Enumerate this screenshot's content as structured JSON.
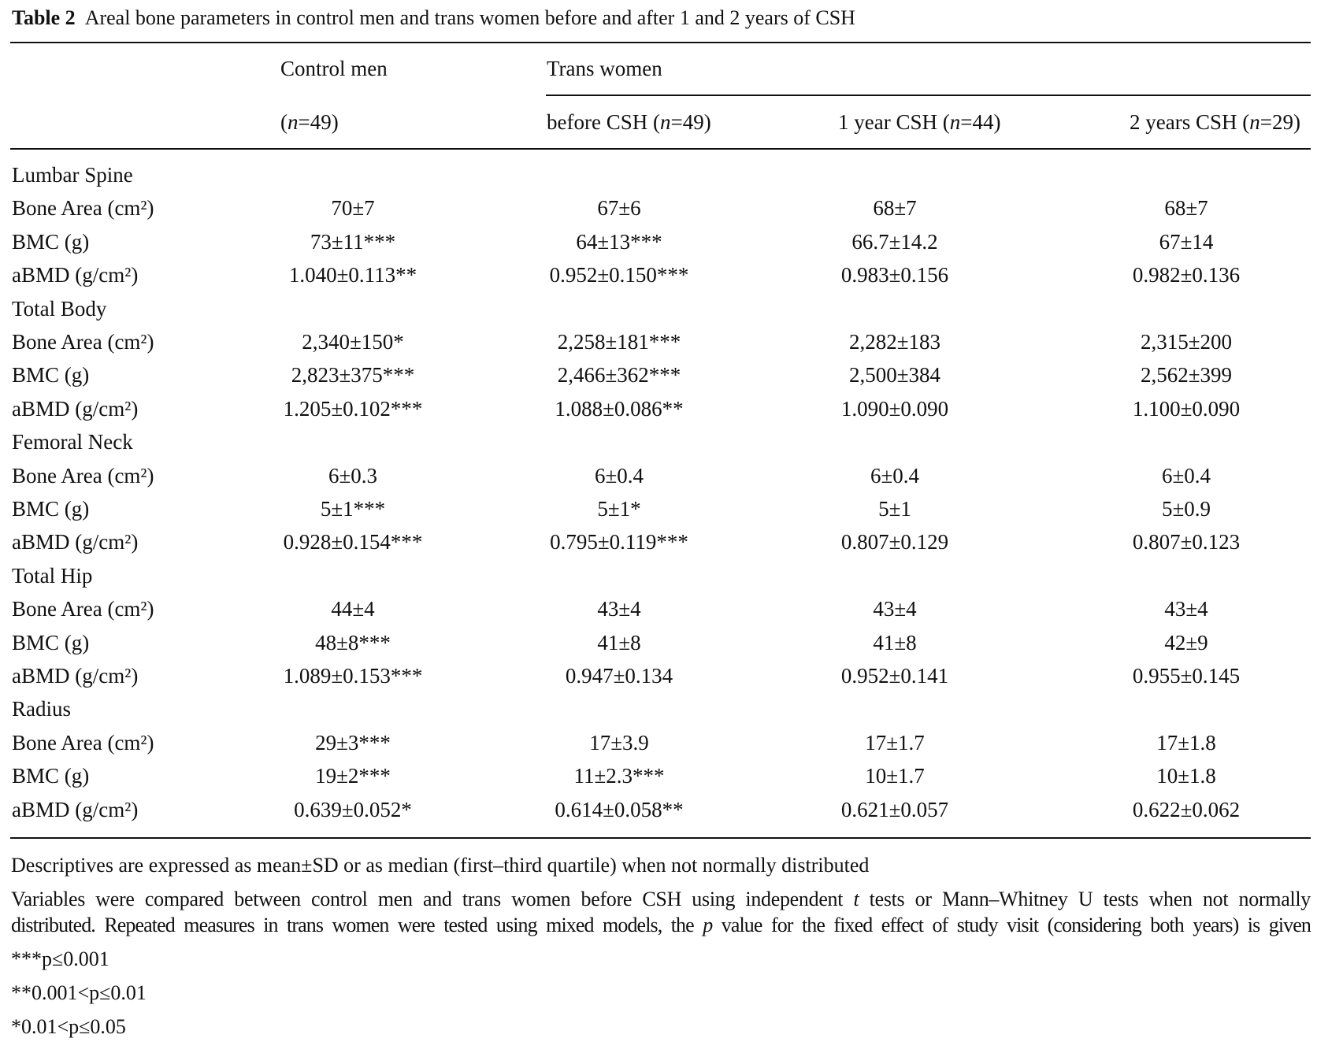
{
  "caption": {
    "label": "Table 2",
    "text": "Areal bone parameters in control men and trans women before and after 1 and 2 years of CSH"
  },
  "header": {
    "group1": "Control men",
    "group2": "Trans women",
    "columns": [
      {
        "pre": "(",
        "n": "n",
        "post": "=49)"
      },
      {
        "pre": "before CSH (",
        "n": "n",
        "post": "=49)"
      },
      {
        "pre": "1 year CSH (",
        "n": "n",
        "post": "=44)"
      },
      {
        "pre": "2 years CSH (",
        "n": "n",
        "post": "=29)"
      }
    ]
  },
  "rows": [
    {
      "label": "Lumbar Spine",
      "section": true
    },
    {
      "label": "Bone Area (cm²)",
      "values": [
        "70±7",
        "67±6",
        "68±7",
        "68±7"
      ]
    },
    {
      "label": "BMC (g)",
      "values": [
        "73±11***",
        "64±13***",
        "66.7±14.2",
        "67±14"
      ]
    },
    {
      "label": "aBMD (g/cm²)",
      "values": [
        "1.040±0.113**",
        "0.952±0.150***",
        "0.983±0.156",
        "0.982±0.136"
      ]
    },
    {
      "label": "Total Body",
      "section": true
    },
    {
      "label": "Bone Area (cm²)",
      "values": [
        "2,340±150*",
        "2,258±181***",
        "2,282±183",
        "2,315±200"
      ]
    },
    {
      "label": "BMC (g)",
      "values": [
        "2,823±375***",
        "2,466±362***",
        "2,500±384",
        "2,562±399"
      ]
    },
    {
      "label": "aBMD (g/cm²)",
      "values": [
        "1.205±0.102***",
        "1.088±0.086**",
        "1.090±0.090",
        "1.100±0.090"
      ]
    },
    {
      "label": "Femoral Neck",
      "section": true
    },
    {
      "label": "Bone Area (cm²)",
      "values": [
        "6±0.3",
        "6±0.4",
        "6±0.4",
        "6±0.4"
      ]
    },
    {
      "label": "BMC (g)",
      "values": [
        "5±1***",
        "5±1*",
        "5±1",
        "5±0.9"
      ]
    },
    {
      "label": "aBMD (g/cm²)",
      "values": [
        "0.928±0.154***",
        "0.795±0.119***",
        "0.807±0.129",
        "0.807±0.123"
      ]
    },
    {
      "label": "Total Hip",
      "section": true
    },
    {
      "label": "Bone Area (cm²)",
      "values": [
        "44±4",
        "43±4",
        "43±4",
        "43±4"
      ]
    },
    {
      "label": "BMC (g)",
      "values": [
        "48±8***",
        "41±8",
        "41±8",
        "42±9"
      ]
    },
    {
      "label": "aBMD (g/cm²)",
      "values": [
        "1.089±0.153***",
        "0.947±0.134",
        "0.952±0.141",
        "0.955±0.145"
      ]
    },
    {
      "label": "Radius",
      "section": true
    },
    {
      "label": "Bone Area (cm²)",
      "values": [
        "29±3***",
        "17±3.9",
        "17±1.7",
        "17±1.8"
      ]
    },
    {
      "label": "BMC (g)",
      "values": [
        "19±2***",
        "11±2.3***",
        "10±1.7",
        "10±1.8"
      ]
    },
    {
      "label": "aBMD (g/cm²)",
      "values": [
        "0.639±0.052*",
        "0.614±0.058**",
        "0.621±0.057",
        "0.622±0.062"
      ]
    }
  ],
  "footnotes": {
    "descriptives": "Descriptives are expressed as mean±SD or as median (first–third quartile) when not normally distributed",
    "methods_line1_a": "Variables were compared between control men and trans women before CSH using independent ",
    "methods_line1_t": "t",
    "methods_line1_b": " tests or Mann–Whitney U tests when not normally",
    "methods_line2_a": "distributed. Repeated measures in trans women were tested using mixed models, the ",
    "methods_line2_p": "p",
    "methods_line2_b": " value for the fixed effect of study visit (considering both years) is given",
    "sig3": "***p≤0.001",
    "sig2": "**0.001<p≤0.01",
    "sig1": "*0.01<p≤0.05"
  }
}
